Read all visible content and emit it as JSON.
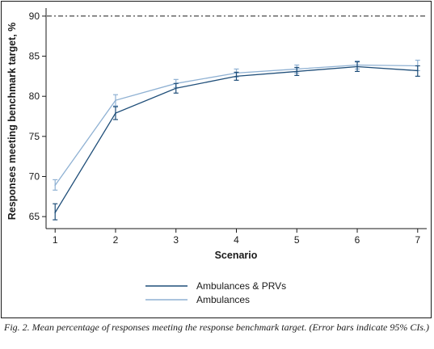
{
  "chart_data": {
    "type": "line",
    "title": "",
    "xlabel": "Scenario",
    "ylabel": "Responses meeting benchmark target, %",
    "x": [
      1,
      2,
      3,
      4,
      5,
      6,
      7
    ],
    "xlim": [
      0.85,
      7.15
    ],
    "ylim": [
      63.5,
      91
    ],
    "yticks": [
      65,
      70,
      75,
      80,
      85,
      90
    ],
    "grid": false,
    "legend_position": "bottom-center",
    "reference_line": {
      "y": 90,
      "style": "dash-dot"
    },
    "series": [
      {
        "name": "Ambulances & PRVs",
        "color": "#1f4e79",
        "values": [
          65.5,
          77.9,
          81.0,
          82.5,
          83.1,
          83.7,
          83.2
        ],
        "ci_low": [
          64.6,
          77.1,
          80.4,
          82.0,
          82.6,
          83.1,
          82.5
        ],
        "ci_high": [
          66.6,
          78.7,
          81.6,
          83.0,
          83.6,
          84.3,
          83.8
        ]
      },
      {
        "name": "Ambulances",
        "color": "#8fb1d3",
        "values": [
          68.9,
          79.5,
          81.6,
          82.9,
          83.4,
          83.9,
          83.8
        ],
        "ci_low": [
          68.3,
          78.8,
          81.1,
          82.4,
          82.9,
          83.4,
          83.2
        ],
        "ci_high": [
          69.6,
          80.2,
          82.1,
          83.4,
          83.9,
          84.4,
          84.5
        ]
      }
    ]
  },
  "caption": "Fig. 2. Mean percentage of responses meeting the response benchmark target. (Error bars indicate 95% CIs.)"
}
